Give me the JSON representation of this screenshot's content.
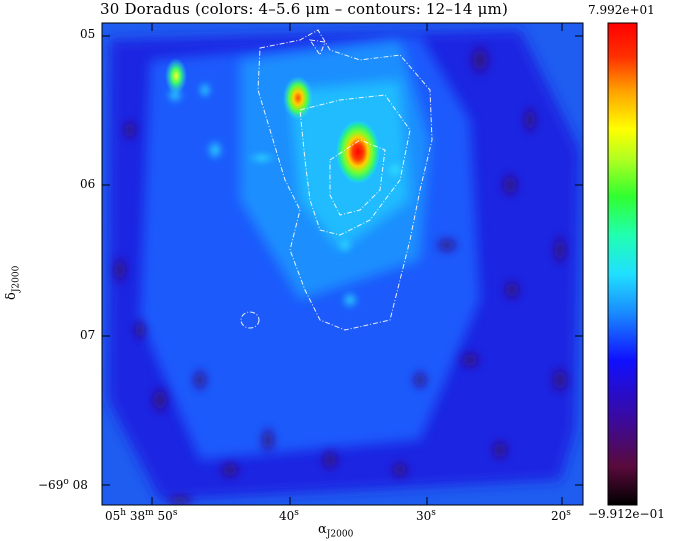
{
  "chart_data": {
    "type": "heatmap",
    "title": "30 Doradus (colors: 4–5.6 μm – contours: 12–14 μm)",
    "xlabel": "α",
    "xlabel_sub": "J2000",
    "ylabel": "δ",
    "ylabel_sub": "J2000",
    "x_ticks": [
      {
        "main": "05",
        "h": "h",
        "mid": " 38",
        "m": "m",
        "tail": " 50",
        "s": "s"
      },
      {
        "main": "40",
        "s": "s"
      },
      {
        "main": "30",
        "s": "s"
      },
      {
        "main": "20",
        "s": "s"
      }
    ],
    "y_ticks": [
      {
        "main": "05",
        "sup": ""
      },
      {
        "main": "06",
        "sup": ""
      },
      {
        "main": "07",
        "sup": ""
      },
      {
        "main": "−69",
        "sup": "o",
        "tail": " 08"
      }
    ],
    "colorbar": {
      "max_label": "7.992e+01",
      "min_label": "−9.912e−01",
      "colors": [
        "#000000",
        "#5a0a3c",
        "#3a0aa0",
        "#1010ff",
        "#1a8cff",
        "#20e0ff",
        "#20ffb0",
        "#30ff30",
        "#b4ff20",
        "#ffff00",
        "#ffa000",
        "#ff3000",
        "#ff0000"
      ]
    },
    "peaks": [
      {
        "ra_s": 35.0,
        "dec_m": 5.75,
        "value": 79.9
      },
      {
        "ra_s": 39.3,
        "dec_m": 5.38,
        "value": 60
      },
      {
        "ra_s": 48.8,
        "dec_m": 5.18,
        "value": 45
      }
    ]
  }
}
